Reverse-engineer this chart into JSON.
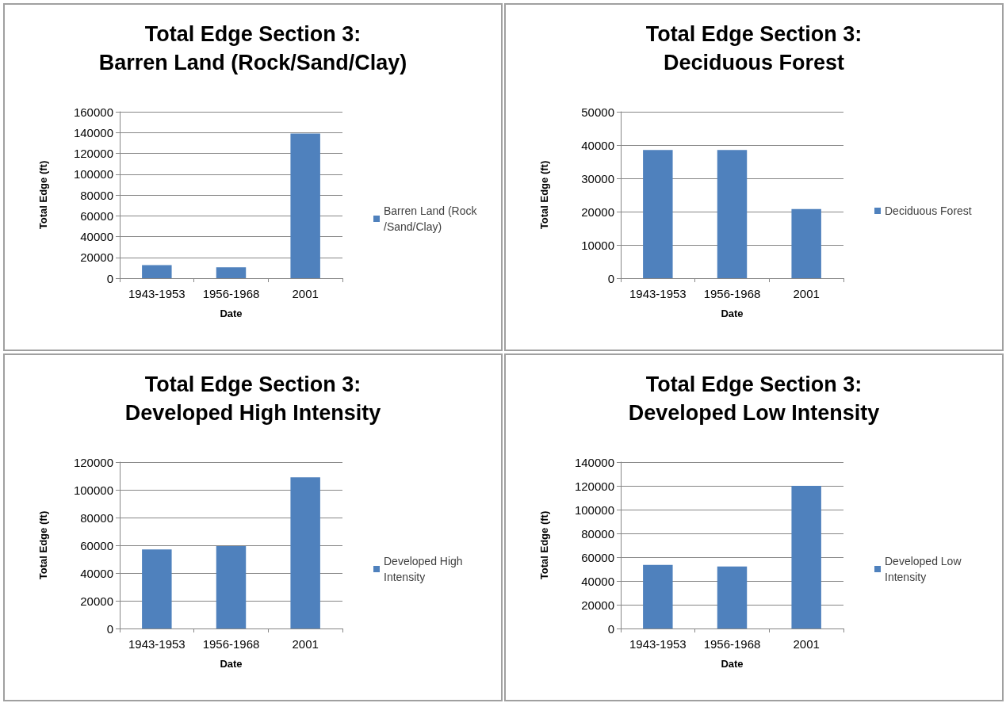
{
  "chart_data": [
    {
      "type": "bar",
      "title": "Total Edge Section 3: Barren Land (Rock/Sand/Clay)",
      "xlabel": "Date",
      "ylabel": "Total Edge (ft)",
      "categories": [
        "1943-1953",
        "1956-1968",
        "2001"
      ],
      "series": [
        {
          "name": "Barren Land (Rock/Sand/Clay)",
          "color": "#4f81bd",
          "values": [
            12500,
            10400,
            139000
          ]
        }
      ],
      "ylim": [
        0,
        160000
      ],
      "yticks": [
        0,
        20000,
        40000,
        60000,
        80000,
        100000,
        120000,
        140000,
        160000
      ],
      "grid": "y",
      "legend": "right"
    },
    {
      "type": "bar",
      "title": "Total Edge Section 3: Deciduous Forest",
      "xlabel": "Date",
      "ylabel": "Total Edge (ft)",
      "categories": [
        "1943-1953",
        "1956-1968",
        "2001"
      ],
      "series": [
        {
          "name": "Deciduous Forest",
          "color": "#4f81bd",
          "values": [
            38500,
            38500,
            20800
          ]
        }
      ],
      "ylim": [
        0,
        50000
      ],
      "yticks": [
        0,
        10000,
        20000,
        30000,
        40000,
        50000
      ],
      "grid": "y",
      "legend": "right"
    },
    {
      "type": "bar",
      "title": "Total Edge Section 3: Developed High Intensity",
      "xlabel": "Date",
      "ylabel": "Total Edge (ft)",
      "categories": [
        "1943-1953",
        "1956-1968",
        "2001"
      ],
      "series": [
        {
          "name": "Developed High Intensity",
          "color": "#4f81bd",
          "values": [
            57000,
            59500,
            109000
          ]
        }
      ],
      "ylim": [
        0,
        120000
      ],
      "yticks": [
        0,
        20000,
        40000,
        60000,
        80000,
        100000,
        120000
      ],
      "grid": "y",
      "legend": "right"
    },
    {
      "type": "bar",
      "title": "Total Edge Section 3: Developed Low Intensity",
      "xlabel": "Date",
      "ylabel": "Total Edge (ft)",
      "categories": [
        "1943-1953",
        "1956-1968",
        "2001"
      ],
      "series": [
        {
          "name": "Developed Low Intensity",
          "color": "#4f81bd",
          "values": [
            53500,
            52200,
            120000
          ]
        }
      ],
      "ylim": [
        0,
        140000
      ],
      "yticks": [
        0,
        20000,
        40000,
        60000,
        80000,
        100000,
        120000,
        140000
      ],
      "grid": "y",
      "legend": "right"
    }
  ]
}
